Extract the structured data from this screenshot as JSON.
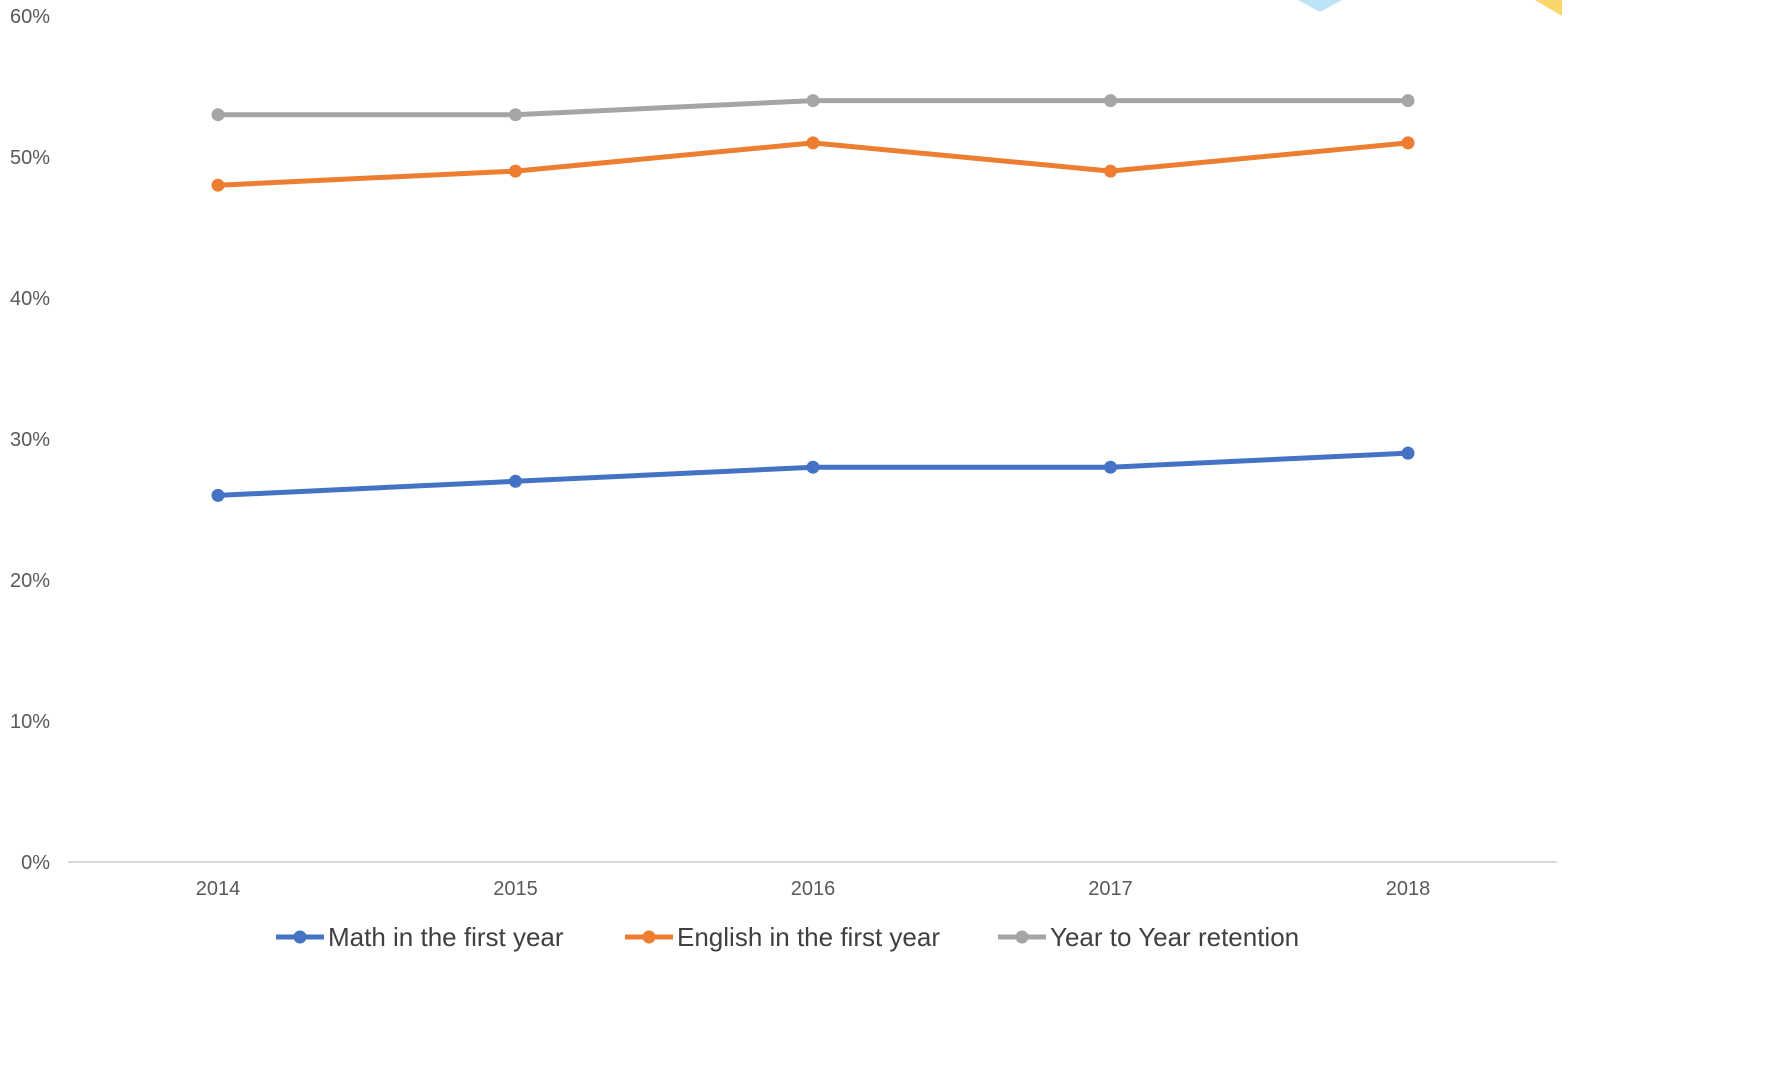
{
  "chart_data": {
    "type": "line",
    "categories": [
      "2014",
      "2015",
      "2016",
      "2017",
      "2018"
    ],
    "ylim": [
      0,
      60
    ],
    "y_ticks": [
      "0%",
      "10%",
      "20%",
      "30%",
      "40%",
      "50%",
      "60%"
    ],
    "grid": false,
    "legend_position": "bottom",
    "series": [
      {
        "name": "Math in the first year",
        "color": "#4472C4",
        "values": [
          26,
          27,
          28,
          28,
          29
        ]
      },
      {
        "name": "English in the first year",
        "color": "#ED7D31",
        "values": [
          48,
          49,
          51,
          49,
          51
        ]
      },
      {
        "name": "Year to Year retention",
        "color": "#A5A5A5",
        "values": [
          53,
          53,
          54,
          54,
          54
        ]
      }
    ]
  }
}
